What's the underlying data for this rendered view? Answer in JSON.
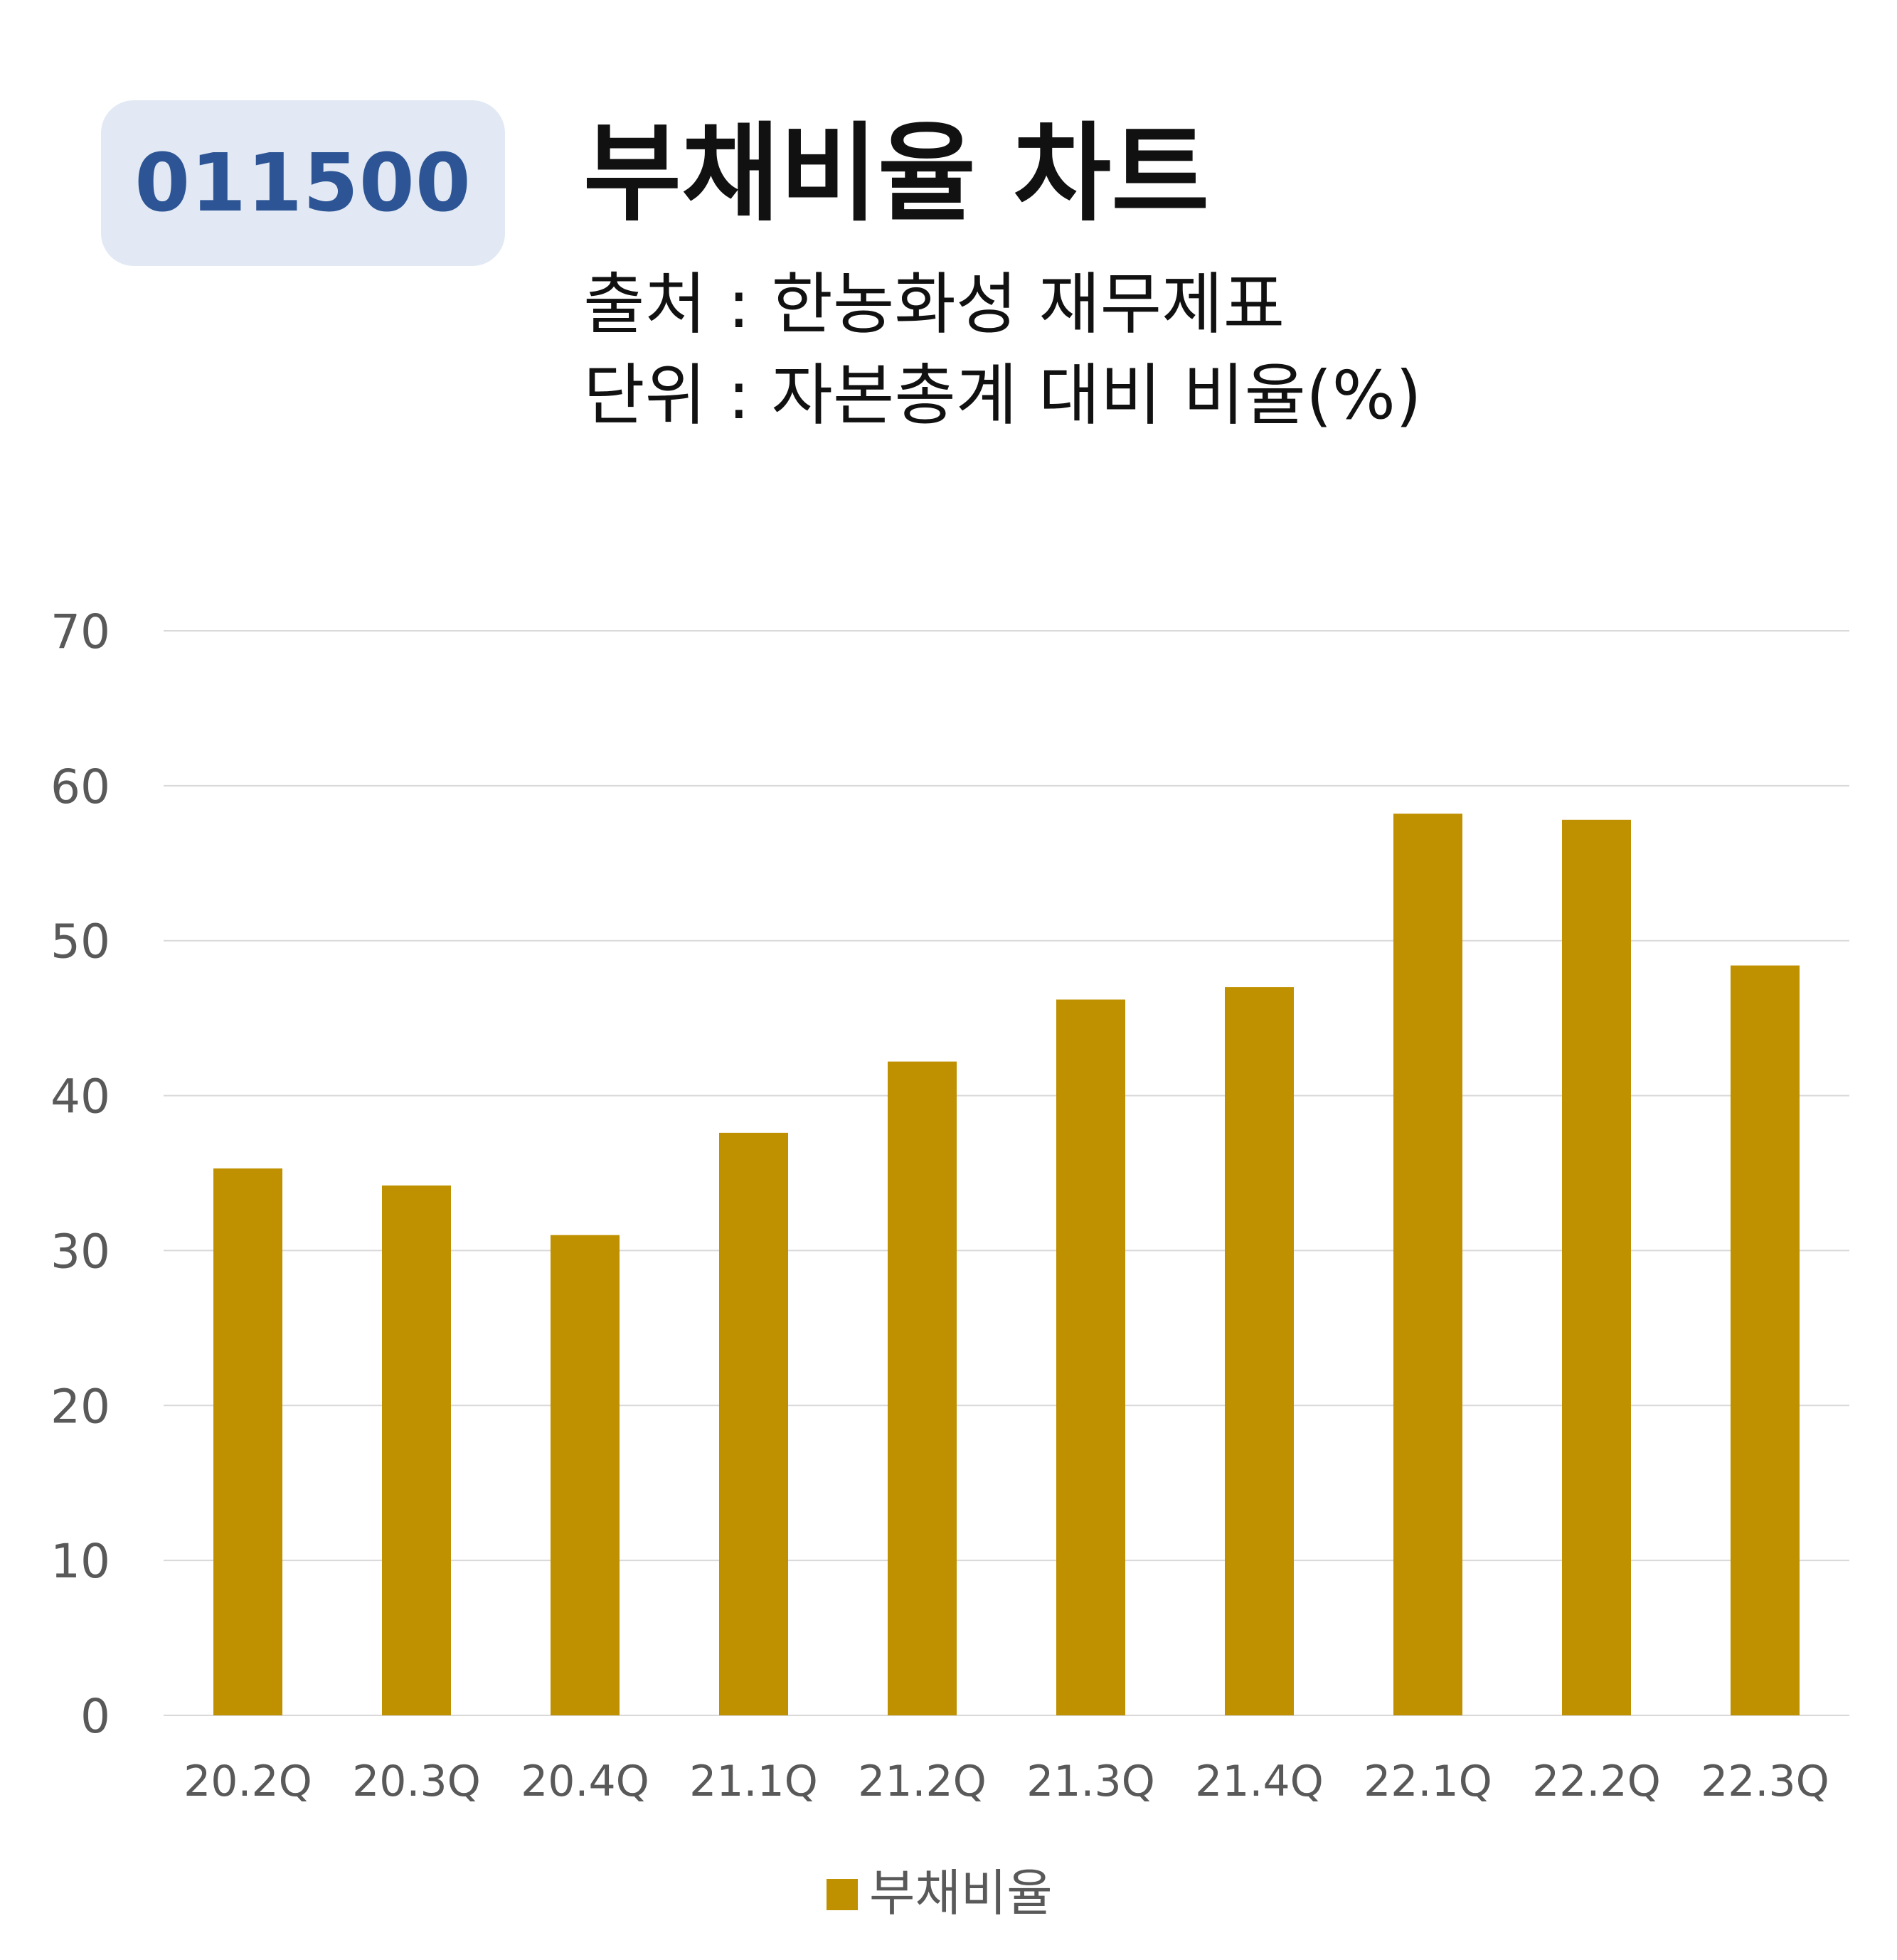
{
  "badge": {
    "code": "011500"
  },
  "header": {
    "title": "부채비율 차트",
    "source_line": "출처 : 한농화성 재무제표",
    "unit_line": "단위 : 자본총계 대비 비율(%)"
  },
  "colors": {
    "bar": "#bf9000",
    "grid": "#d9d9d9",
    "axis_text": "#595959",
    "badge_bg": "#e2e9f4",
    "badge_text": "#2d5595"
  },
  "chart_data": {
    "type": "bar",
    "categories": [
      "20.2Q",
      "20.3Q",
      "20.4Q",
      "21.1Q",
      "21.2Q",
      "21.3Q",
      "21.4Q",
      "22.1Q",
      "22.2Q",
      "22.3Q"
    ],
    "series": [
      {
        "name": "부채비율",
        "values": [
          35.3,
          34.2,
          31.0,
          37.6,
          42.2,
          46.2,
          47.0,
          58.2,
          57.8,
          48.4
        ]
      }
    ],
    "ylim": [
      0,
      70
    ],
    "yticks": [
      "0",
      "10",
      "20",
      "30",
      "40",
      "50",
      "60",
      "70"
    ],
    "grid": true,
    "legend": "bottom"
  }
}
